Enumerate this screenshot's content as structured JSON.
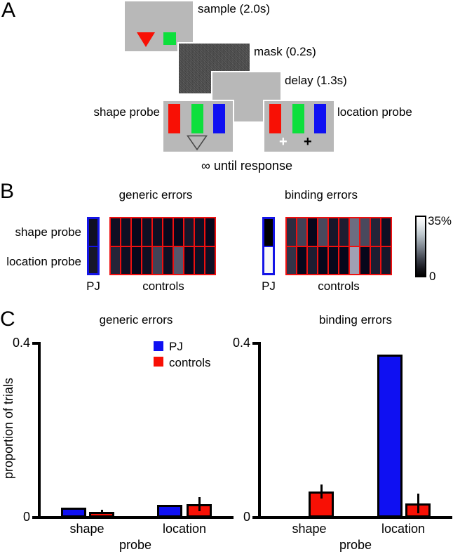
{
  "colors": {
    "red": "#f81005",
    "green": "#0ddf3c",
    "blue": "#0f10f2",
    "screen_gray": "#b8b8b8",
    "mask_gray": "#4e4e4e",
    "pj_border_blue": "#1414e6",
    "grid_border_red": "#ee1010",
    "axis_black": "#000000"
  },
  "panel_a": {
    "label": "A",
    "sample_label": "sample (2.0s)",
    "mask_label": "mask (0.2s)",
    "delay_label": "delay (1.3s)",
    "shape_probe_label": "shape probe",
    "location_probe_label": "location probe",
    "plus_white": "+",
    "plus_black": "+",
    "until_response": "∞ until response"
  },
  "panel_b": {
    "label": "B",
    "pj_label": "PJ",
    "controls_label": "controls",
    "colorbar": {
      "max_label": "35%",
      "min_label": "0",
      "min_value": 0,
      "max_value": 35,
      "unit": "%"
    }
  },
  "panel_c": {
    "label": "C",
    "ylabel": "proportion of trials",
    "legend": [
      {
        "label": "PJ",
        "color": "#0f10f2"
      },
      {
        "label": "controls",
        "color": "#f81005"
      }
    ]
  },
  "chart_data": [
    {
      "type": "heatmap",
      "title": "generic errors",
      "rows": [
        "shape probe",
        "location probe"
      ],
      "scale": {
        "min": 0,
        "max": 35,
        "unit": "%"
      },
      "groups": {
        "PJ": [
          [
            2
          ],
          [
            3
          ]
        ],
        "controls": [
          [
            2,
            2,
            1,
            2,
            2,
            1,
            1,
            3,
            2,
            1
          ],
          [
            5,
            2,
            1,
            2,
            9,
            2,
            12,
            1,
            2,
            2
          ]
        ]
      }
    },
    {
      "type": "heatmap",
      "title": "binding errors",
      "rows": [
        "shape probe",
        "location probe"
      ],
      "scale": {
        "min": 0,
        "max": 35,
        "unit": "%"
      },
      "groups": {
        "PJ": [
          [
            0
          ],
          [
            34
          ]
        ],
        "controls": [
          [
            6,
            9,
            1,
            10,
            3,
            4,
            15,
            10,
            5,
            2
          ],
          [
            7,
            1,
            4,
            1,
            1,
            1,
            22,
            1,
            4,
            3
          ]
        ]
      }
    },
    {
      "type": "bar",
      "title": "generic errors",
      "categories": [
        "shape",
        "location"
      ],
      "xlabel": "probe",
      "ylabel": "proportion of trials",
      "ylim": [
        0,
        0.4
      ],
      "yticks": [
        0,
        0.4
      ],
      "ytick_labels": [
        "0",
        "0.4"
      ],
      "legend_position": "upper right",
      "series": [
        {
          "name": "PJ",
          "color": "#0f10f2",
          "values": [
            0.022,
            0.029
          ],
          "errors": [
            0,
            0
          ]
        },
        {
          "name": "controls",
          "color": "#f81005",
          "values": [
            0.013,
            0.03
          ],
          "errors": [
            0.005,
            0.016
          ]
        }
      ]
    },
    {
      "type": "bar",
      "title": "binding errors",
      "categories": [
        "shape",
        "location"
      ],
      "xlabel": "probe",
      "ylabel": "proportion of trials",
      "ylim": [
        0,
        0.4
      ],
      "yticks": [
        0,
        0.4
      ],
      "ytick_labels": [
        "0",
        "0.4"
      ],
      "series": [
        {
          "name": "PJ",
          "color": "#0f10f2",
          "values": [
            0,
            0.371
          ],
          "errors": [
            0,
            0
          ]
        },
        {
          "name": "controls",
          "color": "#f81005",
          "values": [
            0.059,
            0.032
          ],
          "errors": [
            0.016,
            0.022
          ]
        }
      ]
    }
  ]
}
